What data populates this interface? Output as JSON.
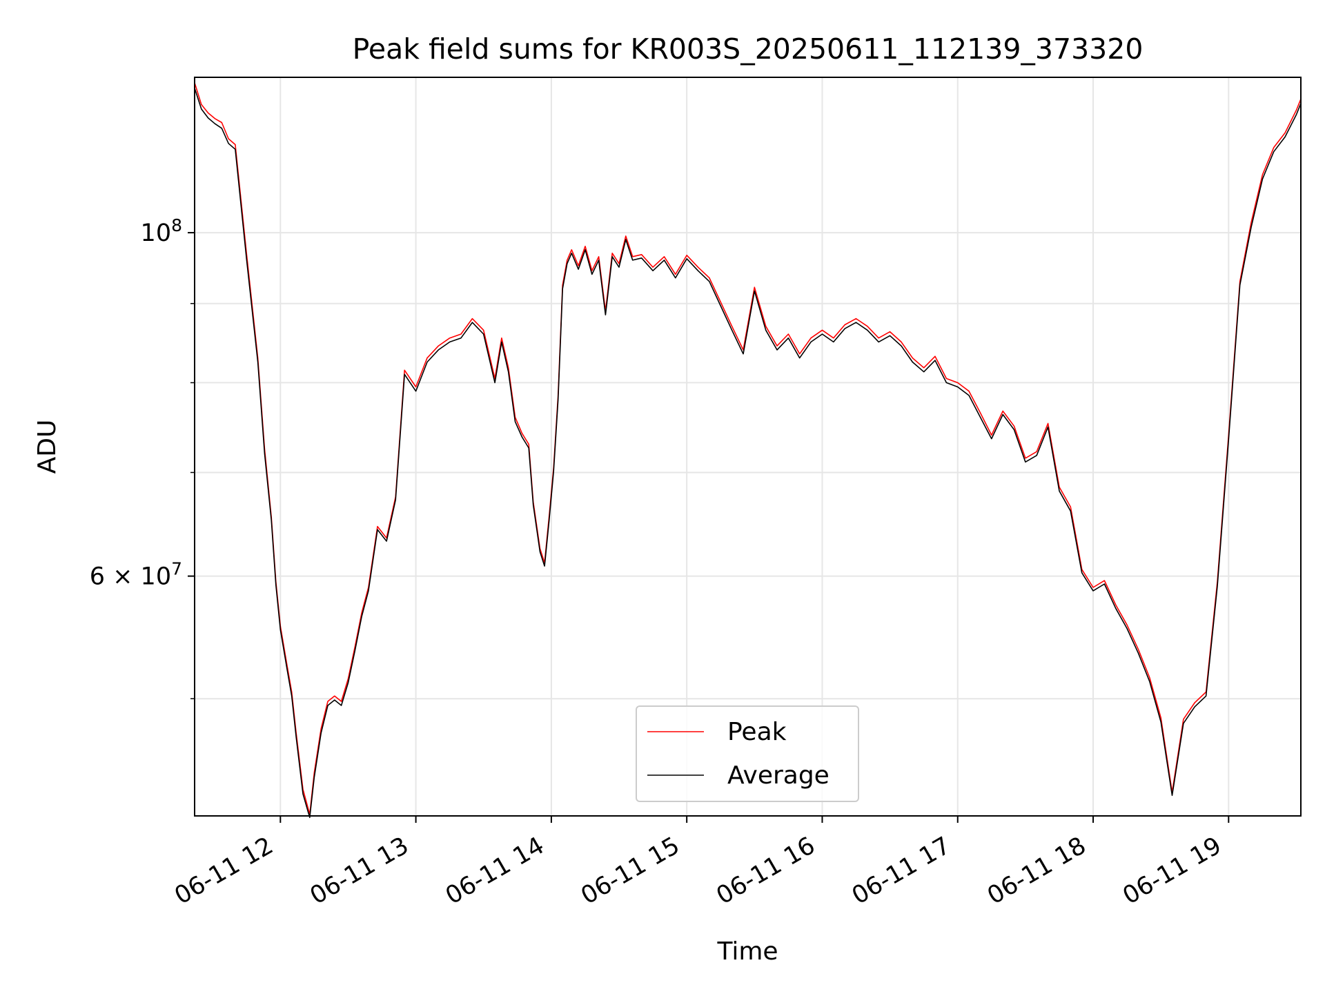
{
  "chart_data": {
    "type": "line",
    "title": "Peak field sums for KR003S_20250611_112139_373320",
    "xlabel": "Time",
    "ylabel": "ADU",
    "y_scale": "log",
    "ylim": [
      42000000,
      126000000
    ],
    "xlim": [
      "2025-06-11 11:22",
      "2025-06-11 19:32"
    ],
    "grid": true,
    "legend_position": "lower center",
    "x_ticks": [
      {
        "value": "2025-06-11 12:00",
        "label": "06-11 12"
      },
      {
        "value": "2025-06-11 13:00",
        "label": "06-11 13"
      },
      {
        "value": "2025-06-11 14:00",
        "label": "06-11 14"
      },
      {
        "value": "2025-06-11 15:00",
        "label": "06-11 15"
      },
      {
        "value": "2025-06-11 16:00",
        "label": "06-11 16"
      },
      {
        "value": "2025-06-11 17:00",
        "label": "06-11 17"
      },
      {
        "value": "2025-06-11 18:00",
        "label": "06-11 18"
      },
      {
        "value": "2025-06-11 19:00",
        "label": "06-11 19"
      }
    ],
    "y_major_ticks": [
      {
        "value": 60000000,
        "base": "6",
        "exp": "7",
        "kind": "mult"
      },
      {
        "value": 100000000,
        "base": "10",
        "exp": "8",
        "kind": "pow"
      }
    ],
    "y_minor_ticks": [
      50000000,
      70000000,
      80000000,
      90000000
    ],
    "series": [
      {
        "name": "Peak",
        "color": "#ff0000",
        "x": [
          "2025-06-11 11:22",
          "2025-06-11 11:25",
          "2025-06-11 11:28",
          "2025-06-11 11:31",
          "2025-06-11 11:34",
          "2025-06-11 11:37",
          "2025-06-11 11:40",
          "2025-06-11 11:45",
          "2025-06-11 11:50",
          "2025-06-11 11:53",
          "2025-06-11 11:56",
          "2025-06-11 11:58",
          "2025-06-11 12:00",
          "2025-06-11 12:03",
          "2025-06-11 12:05",
          "2025-06-11 12:07",
          "2025-06-11 12:10",
          "2025-06-11 12:13",
          "2025-06-11 12:15",
          "2025-06-11 12:18",
          "2025-06-11 12:21",
          "2025-06-11 12:24",
          "2025-06-11 12:27",
          "2025-06-11 12:30",
          "2025-06-11 12:33",
          "2025-06-11 12:36",
          "2025-06-11 12:39",
          "2025-06-11 12:43",
          "2025-06-11 12:47",
          "2025-06-11 12:51",
          "2025-06-11 12:55",
          "2025-06-11 13:00",
          "2025-06-11 13:05",
          "2025-06-11 13:10",
          "2025-06-11 13:15",
          "2025-06-11 13:20",
          "2025-06-11 13:25",
          "2025-06-11 13:30",
          "2025-06-11 13:35",
          "2025-06-11 13:38",
          "2025-06-11 13:41",
          "2025-06-11 13:44",
          "2025-06-11 13:47",
          "2025-06-11 13:50",
          "2025-06-11 13:52",
          "2025-06-11 13:55",
          "2025-06-11 13:57",
          "2025-06-11 13:59",
          "2025-06-11 14:01",
          "2025-06-11 14:03",
          "2025-06-11 14:05",
          "2025-06-11 14:07",
          "2025-06-11 14:09",
          "2025-06-11 14:12",
          "2025-06-11 14:15",
          "2025-06-11 14:18",
          "2025-06-11 14:21",
          "2025-06-11 14:24",
          "2025-06-11 14:27",
          "2025-06-11 14:30",
          "2025-06-11 14:33",
          "2025-06-11 14:36",
          "2025-06-11 14:40",
          "2025-06-11 14:45",
          "2025-06-11 14:50",
          "2025-06-11 14:55",
          "2025-06-11 15:00",
          "2025-06-11 15:05",
          "2025-06-11 15:10",
          "2025-06-11 15:15",
          "2025-06-11 15:20",
          "2025-06-11 15:25",
          "2025-06-11 15:30",
          "2025-06-11 15:35",
          "2025-06-11 15:40",
          "2025-06-11 15:45",
          "2025-06-11 15:50",
          "2025-06-11 15:55",
          "2025-06-11 16:00",
          "2025-06-11 16:05",
          "2025-06-11 16:10",
          "2025-06-11 16:15",
          "2025-06-11 16:20",
          "2025-06-11 16:25",
          "2025-06-11 16:30",
          "2025-06-11 16:35",
          "2025-06-11 16:40",
          "2025-06-11 16:45",
          "2025-06-11 16:50",
          "2025-06-11 16:55",
          "2025-06-11 17:00",
          "2025-06-11 17:05",
          "2025-06-11 17:10",
          "2025-06-11 17:15",
          "2025-06-11 17:20",
          "2025-06-11 17:25",
          "2025-06-11 17:30",
          "2025-06-11 17:35",
          "2025-06-11 17:40",
          "2025-06-11 17:45",
          "2025-06-11 17:50",
          "2025-06-11 17:55",
          "2025-06-11 18:00",
          "2025-06-11 18:05",
          "2025-06-11 18:10",
          "2025-06-11 18:15",
          "2025-06-11 18:20",
          "2025-06-11 18:25",
          "2025-06-11 18:30",
          "2025-06-11 18:35",
          "2025-06-11 18:40",
          "2025-06-11 18:45",
          "2025-06-11 18:50",
          "2025-06-11 18:55",
          "2025-06-11 19:00",
          "2025-06-11 19:05",
          "2025-06-11 19:10",
          "2025-06-11 19:15",
          "2025-06-11 19:20",
          "2025-06-11 19:25",
          "2025-06-11 19:30",
          "2025-06-11 19:32"
        ],
        "values": [
          125000000,
          121000000,
          119500000,
          118500000,
          117800000,
          115000000,
          114000000,
          97000000,
          83000000,
          72500000,
          65500000,
          59500000,
          55700000,
          52500000,
          50500000,
          47500000,
          43700000,
          42100000,
          44800000,
          47800000,
          49800000,
          50200000,
          49800000,
          51500000,
          54000000,
          56800000,
          59000000,
          64600000,
          63500000,
          67500000,
          81500000,
          79500000,
          83000000,
          84500000,
          85500000,
          86000000,
          88000000,
          86500000,
          80500000,
          85500000,
          81800000,
          76000000,
          74200000,
          73000000,
          67000000,
          62500000,
          61200000,
          65500000,
          70500000,
          78500000,
          92500000,
          96000000,
          97500000,
          95200000,
          98000000,
          94500000,
          96500000,
          89000000,
          97000000,
          95500000,
          99500000,
          96500000,
          96800000,
          95000000,
          96500000,
          94000000,
          96700000,
          95000000,
          93500000,
          90200000,
          87000000,
          84000000,
          92200000,
          87000000,
          84500000,
          86000000,
          83500000,
          85500000,
          86500000,
          85500000,
          87200000,
          88000000,
          87000000,
          85500000,
          86300000,
          85000000,
          83000000,
          81800000,
          83200000,
          80500000,
          80000000,
          79000000,
          76500000,
          74000000,
          76700000,
          75000000,
          71500000,
          72200000,
          75300000,
          68500000,
          66500000,
          60600000,
          59000000,
          59600000,
          57500000,
          55800000,
          53800000,
          51600000,
          48600000,
          43500000,
          48500000,
          49700000,
          50500000,
          59500000,
          74000000,
          93000000,
          101500000,
          109000000,
          113500000,
          116000000,
          120000000,
          122000000
        ]
      },
      {
        "name": "Average",
        "color": "#000000",
        "x": [
          "2025-06-11 11:22",
          "2025-06-11 11:25",
          "2025-06-11 11:28",
          "2025-06-11 11:31",
          "2025-06-11 11:34",
          "2025-06-11 11:37",
          "2025-06-11 11:40",
          "2025-06-11 11:45",
          "2025-06-11 11:50",
          "2025-06-11 11:53",
          "2025-06-11 11:56",
          "2025-06-11 11:58",
          "2025-06-11 12:00",
          "2025-06-11 12:03",
          "2025-06-11 12:05",
          "2025-06-11 12:07",
          "2025-06-11 12:10",
          "2025-06-11 12:13",
          "2025-06-11 12:15",
          "2025-06-11 12:18",
          "2025-06-11 12:21",
          "2025-06-11 12:24",
          "2025-06-11 12:27",
          "2025-06-11 12:30",
          "2025-06-11 12:33",
          "2025-06-11 12:36",
          "2025-06-11 12:39",
          "2025-06-11 12:43",
          "2025-06-11 12:47",
          "2025-06-11 12:51",
          "2025-06-11 12:55",
          "2025-06-11 13:00",
          "2025-06-11 13:05",
          "2025-06-11 13:10",
          "2025-06-11 13:15",
          "2025-06-11 13:20",
          "2025-06-11 13:25",
          "2025-06-11 13:30",
          "2025-06-11 13:35",
          "2025-06-11 13:38",
          "2025-06-11 13:41",
          "2025-06-11 13:44",
          "2025-06-11 13:47",
          "2025-06-11 13:50",
          "2025-06-11 13:52",
          "2025-06-11 13:55",
          "2025-06-11 13:57",
          "2025-06-11 13:59",
          "2025-06-11 14:01",
          "2025-06-11 14:03",
          "2025-06-11 14:05",
          "2025-06-11 14:07",
          "2025-06-11 14:09",
          "2025-06-11 14:12",
          "2025-06-11 14:15",
          "2025-06-11 14:18",
          "2025-06-11 14:21",
          "2025-06-11 14:24",
          "2025-06-11 14:27",
          "2025-06-11 14:30",
          "2025-06-11 14:33",
          "2025-06-11 14:36",
          "2025-06-11 14:40",
          "2025-06-11 14:45",
          "2025-06-11 14:50",
          "2025-06-11 14:55",
          "2025-06-11 15:00",
          "2025-06-11 15:05",
          "2025-06-11 15:10",
          "2025-06-11 15:15",
          "2025-06-11 15:20",
          "2025-06-11 15:25",
          "2025-06-11 15:30",
          "2025-06-11 15:35",
          "2025-06-11 15:40",
          "2025-06-11 15:45",
          "2025-06-11 15:50",
          "2025-06-11 15:55",
          "2025-06-11 16:00",
          "2025-06-11 16:05",
          "2025-06-11 16:10",
          "2025-06-11 16:15",
          "2025-06-11 16:20",
          "2025-06-11 16:25",
          "2025-06-11 16:30",
          "2025-06-11 16:35",
          "2025-06-11 16:40",
          "2025-06-11 16:45",
          "2025-06-11 16:50",
          "2025-06-11 16:55",
          "2025-06-11 17:00",
          "2025-06-11 17:05",
          "2025-06-11 17:10",
          "2025-06-11 17:15",
          "2025-06-11 17:20",
          "2025-06-11 17:25",
          "2025-06-11 17:30",
          "2025-06-11 17:35",
          "2025-06-11 17:40",
          "2025-06-11 17:45",
          "2025-06-11 17:50",
          "2025-06-11 17:55",
          "2025-06-11 18:00",
          "2025-06-11 18:05",
          "2025-06-11 18:10",
          "2025-06-11 18:15",
          "2025-06-11 18:20",
          "2025-06-11 18:25",
          "2025-06-11 18:30",
          "2025-06-11 18:35",
          "2025-06-11 18:40",
          "2025-06-11 18:45",
          "2025-06-11 18:50",
          "2025-06-11 18:55",
          "2025-06-11 19:00",
          "2025-06-11 19:05",
          "2025-06-11 19:10",
          "2025-06-11 19:15",
          "2025-06-11 19:20",
          "2025-06-11 19:25",
          "2025-06-11 19:30",
          "2025-06-11 19:32"
        ],
        "values": [
          124000000,
          120200000,
          118600000,
          117600000,
          116800000,
          114200000,
          113200000,
          96200000,
          82500000,
          72000000,
          65200000,
          59200000,
          55400000,
          52200000,
          50200000,
          47200000,
          43400000,
          41900000,
          44500000,
          47500000,
          49500000,
          49900000,
          49500000,
          51200000,
          53700000,
          56500000,
          58700000,
          64300000,
          63200000,
          67200000,
          81000000,
          79000000,
          82500000,
          84000000,
          85000000,
          85500000,
          87500000,
          86000000,
          80000000,
          85000000,
          81300000,
          75500000,
          73800000,
          72600000,
          66700000,
          62200000,
          60900000,
          65100000,
          70100000,
          78000000,
          92000000,
          95500000,
          97000000,
          94700000,
          97500000,
          94000000,
          96000000,
          88500000,
          96500000,
          95000000,
          99000000,
          96000000,
          96300000,
          94500000,
          96000000,
          93500000,
          96200000,
          94500000,
          93000000,
          89700000,
          86500000,
          83500000,
          91700000,
          86500000,
          84000000,
          85500000,
          83000000,
          85000000,
          86000000,
          85000000,
          86700000,
          87500000,
          86500000,
          85000000,
          85800000,
          84500000,
          82500000,
          81300000,
          82700000,
          80000000,
          79500000,
          78500000,
          76000000,
          73600000,
          76300000,
          74600000,
          71100000,
          71800000,
          74900000,
          68100000,
          66100000,
          60300000,
          58700000,
          59300000,
          57200000,
          55500000,
          53500000,
          51300000,
          48300000,
          43300000,
          48200000,
          49400000,
          50200000,
          59100000,
          73500000,
          92500000,
          100800000,
          108300000,
          112800000,
          115300000,
          119200000,
          121200000
        ]
      }
    ]
  }
}
